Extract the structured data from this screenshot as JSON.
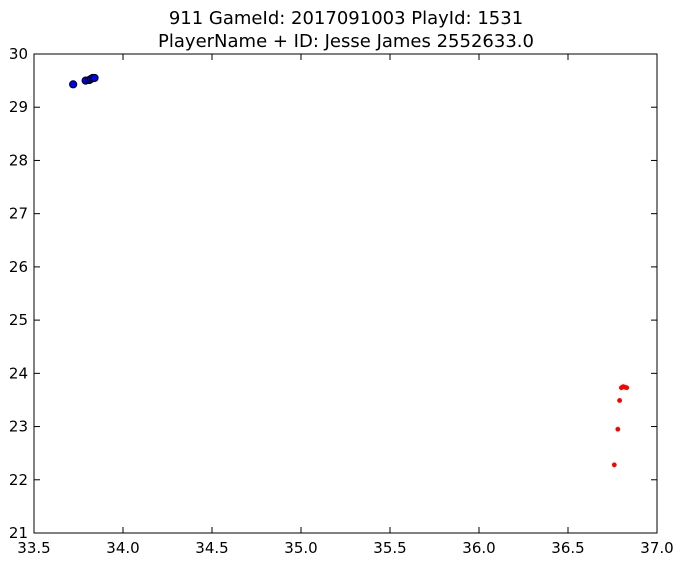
{
  "chart_data": {
    "type": "scatter",
    "title": [
      "911 GameId: 2017091003 PlayId: 1531",
      "PlayerName + ID: Jesse James 2552633.0"
    ],
    "xlim": [
      33.5,
      37.0
    ],
    "ylim": [
      21,
      30
    ],
    "xticks": [
      "33.5",
      "34.0",
      "34.5",
      "35.0",
      "35.5",
      "36.0",
      "36.5",
      "37.0"
    ],
    "yticks": [
      "21",
      "22",
      "23",
      "24",
      "25",
      "26",
      "27",
      "28",
      "29",
      "30"
    ],
    "grid": false,
    "series": [
      {
        "color": "#0000ff",
        "marker": "large-circle",
        "points": [
          {
            "x": 33.72,
            "y": 29.43
          },
          {
            "x": 33.79,
            "y": 29.5
          },
          {
            "x": 33.81,
            "y": 29.51
          },
          {
            "x": 33.82,
            "y": 29.53
          },
          {
            "x": 33.83,
            "y": 29.55
          },
          {
            "x": 33.84,
            "y": 29.55
          }
        ]
      },
      {
        "color": "#ff0000",
        "marker": "small-dot",
        "points": [
          {
            "x": 36.76,
            "y": 22.28
          },
          {
            "x": 36.78,
            "y": 22.95
          },
          {
            "x": 36.79,
            "y": 23.49
          },
          {
            "x": 36.8,
            "y": 23.73
          },
          {
            "x": 36.81,
            "y": 23.75
          },
          {
            "x": 36.82,
            "y": 23.74
          },
          {
            "x": 36.83,
            "y": 23.73
          }
        ]
      }
    ]
  }
}
